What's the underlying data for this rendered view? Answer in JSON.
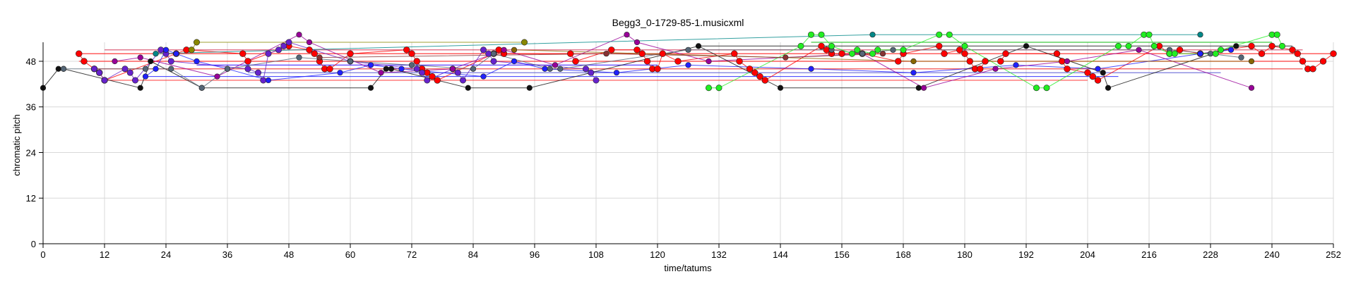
{
  "chart_data": {
    "type": "scatter",
    "title": "Begg3_0-1729-85-1.musicxml",
    "xlabel": "time/tatums",
    "ylabel": "chromatic pitch",
    "xlim": [
      0,
      252
    ],
    "ylim": [
      0,
      53
    ],
    "xticks": [
      0,
      12,
      24,
      36,
      48,
      60,
      72,
      84,
      96,
      108,
      120,
      132,
      144,
      156,
      168,
      180,
      192,
      204,
      216,
      228,
      240,
      252
    ],
    "yticks": [
      0,
      12,
      24,
      36,
      48
    ],
    "grid": true,
    "legend": "none",
    "long_lines": [
      {
        "x": [
          7,
          252
        ],
        "y": [
          50,
          50
        ],
        "color": "#ff0000"
      },
      {
        "x": [
          7,
          250
        ],
        "y": [
          48,
          48
        ],
        "color": "#ff2020"
      },
      {
        "x": [
          10,
          246
        ],
        "y": [
          46,
          46
        ],
        "color": "#ee3030"
      },
      {
        "x": [
          12,
          204
        ],
        "y": [
          43,
          43
        ],
        "color": "#ff3030"
      },
      {
        "x": [
          12,
          246
        ],
        "y": [
          51,
          51
        ],
        "color": "#d03050"
      },
      {
        "x": [
          128,
          244
        ],
        "y": [
          52,
          52
        ],
        "color": "#444444"
      },
      {
        "x": [
          150,
          240
        ],
        "y": [
          53,
          53
        ],
        "color": "#20c020"
      },
      {
        "x": [
          20,
          210
        ],
        "y": [
          44,
          44
        ],
        "color": "#3030ff"
      },
      {
        "x": [
          40,
          230
        ],
        "y": [
          45,
          45
        ],
        "color": "#5050d0"
      },
      {
        "x": [
          30,
          120
        ],
        "y": [
          47,
          47
        ],
        "color": "#4020ff"
      }
    ],
    "series": [
      {
        "color": "#ff0000",
        "size": 3.2,
        "x": [
          7,
          8,
          10,
          11,
          12,
          26,
          28,
          39,
          40,
          48,
          52,
          53,
          54,
          55,
          56,
          60,
          71,
          72,
          73,
          74,
          75,
          76,
          77,
          88,
          89,
          90,
          103,
          104,
          111,
          116,
          117,
          118,
          119,
          120,
          121,
          124,
          135,
          136,
          138,
          139,
          140,
          141,
          152,
          153,
          154,
          156,
          160,
          167,
          168,
          175,
          176,
          179,
          180,
          181,
          182,
          183,
          184,
          187,
          188,
          198,
          199,
          200,
          204,
          205,
          206,
          218,
          220,
          222,
          226,
          236,
          238,
          240,
          244,
          245,
          246,
          247,
          248,
          250,
          252
        ],
        "y": [
          50,
          48,
          46,
          45,
          43,
          50,
          51,
          50,
          48,
          52,
          51,
          50,
          48,
          46,
          46,
          50,
          51,
          50,
          48,
          46,
          45,
          44,
          43,
          50,
          51,
          50,
          50,
          48,
          51,
          51,
          50,
          48,
          46,
          46,
          50,
          48,
          50,
          48,
          46,
          45,
          44,
          43,
          52,
          51,
          50,
          50,
          50,
          48,
          50,
          52,
          50,
          51,
          50,
          48,
          46,
          46,
          48,
          48,
          50,
          50,
          48,
          46,
          45,
          44,
          43,
          52,
          50,
          51,
          50,
          52,
          50,
          52,
          51,
          50,
          48,
          46,
          46,
          48,
          50
        ]
      },
      {
        "color": "#6622cc",
        "size": 3.0,
        "x": [
          10,
          11,
          12,
          16,
          17,
          18,
          23,
          24,
          25,
          40,
          42,
          43,
          44,
          46,
          47,
          48,
          60,
          73,
          74,
          75,
          80,
          81,
          82,
          86,
          87,
          88,
          106,
          107,
          108
        ],
        "y": [
          46,
          45,
          43,
          46,
          45,
          43,
          51,
          50,
          48,
          46,
          45,
          43,
          50,
          51,
          52,
          53,
          48,
          46,
          45,
          43,
          46,
          45,
          43,
          51,
          50,
          48,
          46,
          45,
          43
        ]
      },
      {
        "color": "#2020ff",
        "size": 2.6,
        "x": [
          20,
          22,
          24,
          26,
          30,
          36,
          44,
          58,
          64,
          70,
          86,
          92,
          98,
          112,
          126,
          150,
          170,
          190,
          206,
          226,
          232
        ],
        "y": [
          44,
          46,
          51,
          50,
          48,
          46,
          43,
          45,
          47,
          46,
          44,
          48,
          46,
          45,
          47,
          46,
          45,
          47,
          46,
          50,
          51
        ]
      },
      {
        "color": "#990099",
        "size": 2.6,
        "x": [
          14,
          19,
          34,
          50,
          52,
          66,
          80,
          90,
          100,
          114,
          116,
          130,
          160,
          172,
          186,
          200,
          214,
          236
        ],
        "y": [
          48,
          49,
          44,
          55,
          53,
          45,
          46,
          51,
          47,
          55,
          53,
          48,
          50,
          41,
          46,
          48,
          51,
          41
        ]
      },
      {
        "color": "#111111",
        "size": 2.6,
        "x": [
          0,
          3,
          4,
          19,
          21,
          31,
          64,
          67,
          68,
          83,
          95,
          128,
          144,
          171,
          192,
          207,
          208,
          233
        ],
        "y": [
          41,
          46,
          46,
          41,
          48,
          41,
          41,
          46,
          46,
          41,
          41,
          52,
          41,
          41,
          52,
          45,
          41,
          52
        ]
      },
      {
        "color": "#556677",
        "size": 2.6,
        "x": [
          4,
          20,
          25,
          31,
          36,
          50,
          60,
          72,
          84,
          88,
          99,
          101,
          126,
          154,
          160,
          166,
          220,
          228,
          234
        ],
        "y": [
          46,
          46,
          46,
          41,
          46,
          49,
          48,
          47,
          46,
          50,
          46,
          46,
          51,
          51,
          50,
          51,
          51,
          50,
          49
        ]
      },
      {
        "color": "#008888",
        "size": 2.6,
        "x": [
          22,
          162,
          226
        ],
        "y": [
          50,
          55,
          55
        ]
      },
      {
        "color": "#22ee22",
        "size": 3.0,
        "x": [
          130,
          132,
          148,
          150,
          152,
          154,
          158,
          159,
          162,
          163,
          168,
          175,
          177,
          180,
          194,
          196,
          210,
          212,
          215,
          216,
          217,
          220,
          221,
          229,
          230,
          240,
          241,
          242
        ],
        "y": [
          41,
          41,
          52,
          55,
          55,
          52,
          50,
          51,
          50,
          51,
          51,
          55,
          55,
          52,
          41,
          41,
          52,
          52,
          55,
          55,
          52,
          50,
          50,
          50,
          51,
          55,
          55,
          52
        ]
      },
      {
        "color": "#888800",
        "size": 3.0,
        "x": [
          29,
          30,
          94
        ],
        "y": [
          51,
          53,
          53
        ]
      },
      {
        "color": "#886600",
        "size": 2.6,
        "x": [
          92,
          170,
          236
        ],
        "y": [
          51,
          48,
          48
        ]
      },
      {
        "color": "#883333",
        "size": 2.6,
        "x": [
          54,
          110,
          145,
          164
        ],
        "y": [
          49,
          50,
          49,
          50
        ]
      }
    ]
  }
}
